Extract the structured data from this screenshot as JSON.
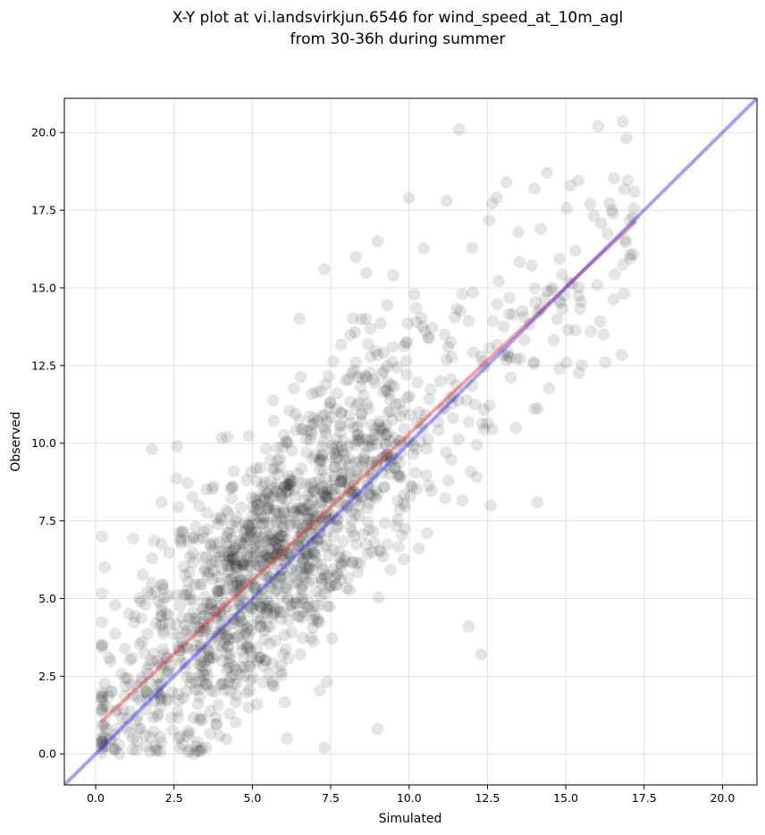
{
  "chart_data": {
    "type": "scatter",
    "title": "X-Y plot at vi.landsvirkjun.6546 for wind_speed_at_10m_agl",
    "subtitle": "from 30-36h during summer",
    "xlabel": "Simulated",
    "ylabel": "Observed",
    "xlim": [
      -1.0,
      21.1
    ],
    "ylim": [
      -1.0,
      21.1
    ],
    "xticks": [
      "0.0",
      "2.5",
      "5.0",
      "7.5",
      "10.0",
      "12.5",
      "15.0",
      "17.5",
      "20.0"
    ],
    "yticks": [
      "0.0",
      "2.5",
      "5.0",
      "7.5",
      "10.0",
      "12.5",
      "15.0",
      "17.5",
      "20.0"
    ],
    "grid": true,
    "point_color": "#000000",
    "point_alpha": 0.1,
    "points_note_count": 1500,
    "highlighted_points": [
      [
        11.6,
        20.1
      ],
      [
        14.4,
        18.7
      ],
      [
        13.1,
        18.4
      ],
      [
        17.2,
        18.1
      ],
      [
        14.0,
        18.2
      ],
      [
        12.8,
        17.9
      ],
      [
        10.0,
        17.9
      ],
      [
        11.2,
        17.8
      ],
      [
        16.5,
        17.4
      ],
      [
        14.2,
        16.9
      ],
      [
        15.3,
        16.2
      ],
      [
        16.0,
        15.1
      ],
      [
        9.0,
        16.5
      ],
      [
        7.3,
        15.6
      ],
      [
        9.5,
        15.4
      ],
      [
        11.7,
        14.8
      ],
      [
        15.8,
        13.6
      ],
      [
        14.8,
        12.4
      ],
      [
        14.0,
        11.1
      ],
      [
        14.1,
        8.1
      ],
      [
        12.6,
        8.0
      ],
      [
        12.3,
        3.2
      ],
      [
        11.9,
        4.1
      ],
      [
        9.0,
        0.8
      ],
      [
        7.3,
        0.2
      ],
      [
        6.1,
        0.5
      ],
      [
        1.8,
        9.8
      ],
      [
        2.6,
        9.9
      ],
      [
        2.1,
        8.1
      ],
      [
        0.2,
        7.0
      ],
      [
        1.9,
        0.1
      ],
      [
        4.2,
        10.2
      ],
      [
        6.5,
        14.0
      ],
      [
        8.3,
        16.0
      ]
    ],
    "generated_cloud": {
      "count": 1500,
      "x_range": [
        0.2,
        17.2
      ],
      "noise_sd": 1.9
    },
    "series": [
      {
        "type": "line",
        "role": "regression",
        "color": "#e63333",
        "alpha": 0.45,
        "x": [
          0.2,
          17.2
        ],
        "y": [
          1.05,
          17.1
        ]
      },
      {
        "type": "line",
        "role": "identity",
        "color": "#3333ff",
        "alpha": 0.45,
        "x": [
          -1.0,
          21.1
        ],
        "y": [
          -1.0,
          21.1
        ]
      }
    ]
  }
}
